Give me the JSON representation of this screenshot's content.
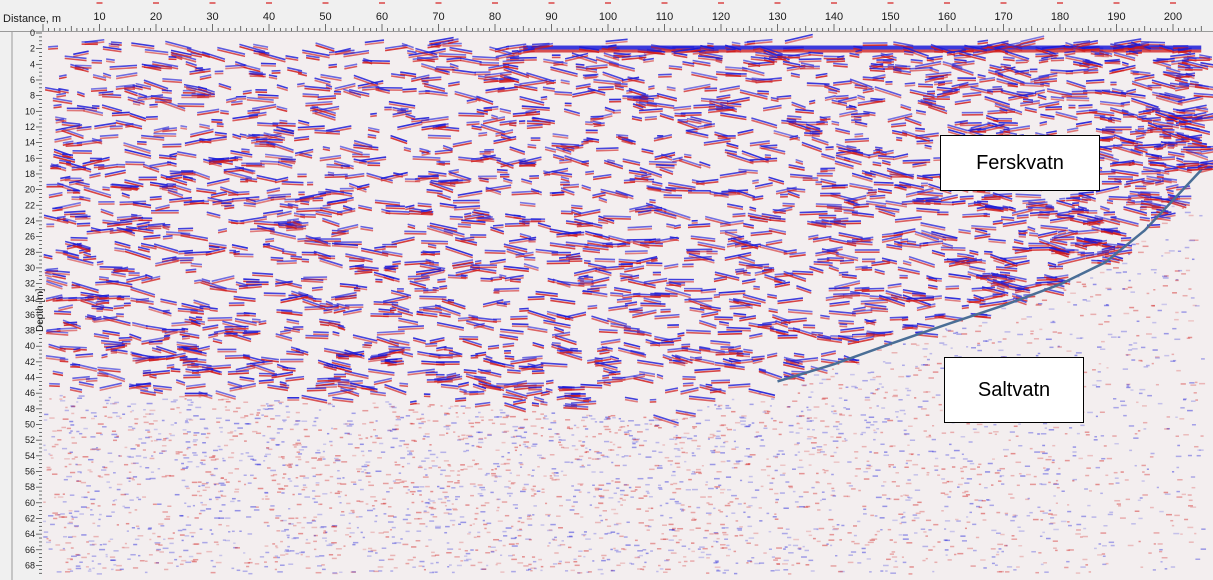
{
  "chart_data": {
    "type": "heatmap",
    "xlabel": "Distance, m",
    "ylabel": "Depth [m]",
    "xlim": [
      0,
      205
    ],
    "ylim": [
      0,
      69
    ],
    "x_ticks": [
      10,
      20,
      30,
      40,
      50,
      60,
      70,
      80,
      90,
      100,
      110,
      120,
      130,
      140,
      150,
      160,
      170,
      180,
      190,
      200
    ],
    "y_ticks": [
      0,
      2,
      4,
      6,
      8,
      10,
      12,
      14,
      16,
      18,
      20,
      22,
      24,
      26,
      28,
      30,
      32,
      34,
      36,
      38,
      40,
      42,
      44,
      46,
      48,
      50,
      52,
      54,
      56,
      58,
      60,
      62,
      64,
      66,
      68
    ],
    "annotations": [
      {
        "text": "Ferskvatn"
      },
      {
        "text": "Saltvatn"
      }
    ],
    "interface_line": {
      "x": [
        130,
        140,
        150,
        160,
        170,
        180,
        188,
        195,
        205
      ],
      "y": [
        44.5,
        42.3,
        39.7,
        37.2,
        34.8,
        32.1,
        29.3,
        25.2,
        17.5
      ]
    },
    "colors": {
      "positive": "#d01818",
      "negative": "#1a1ad8",
      "interface_line": "#4a6e96",
      "xlabel": "#cc0000"
    }
  }
}
